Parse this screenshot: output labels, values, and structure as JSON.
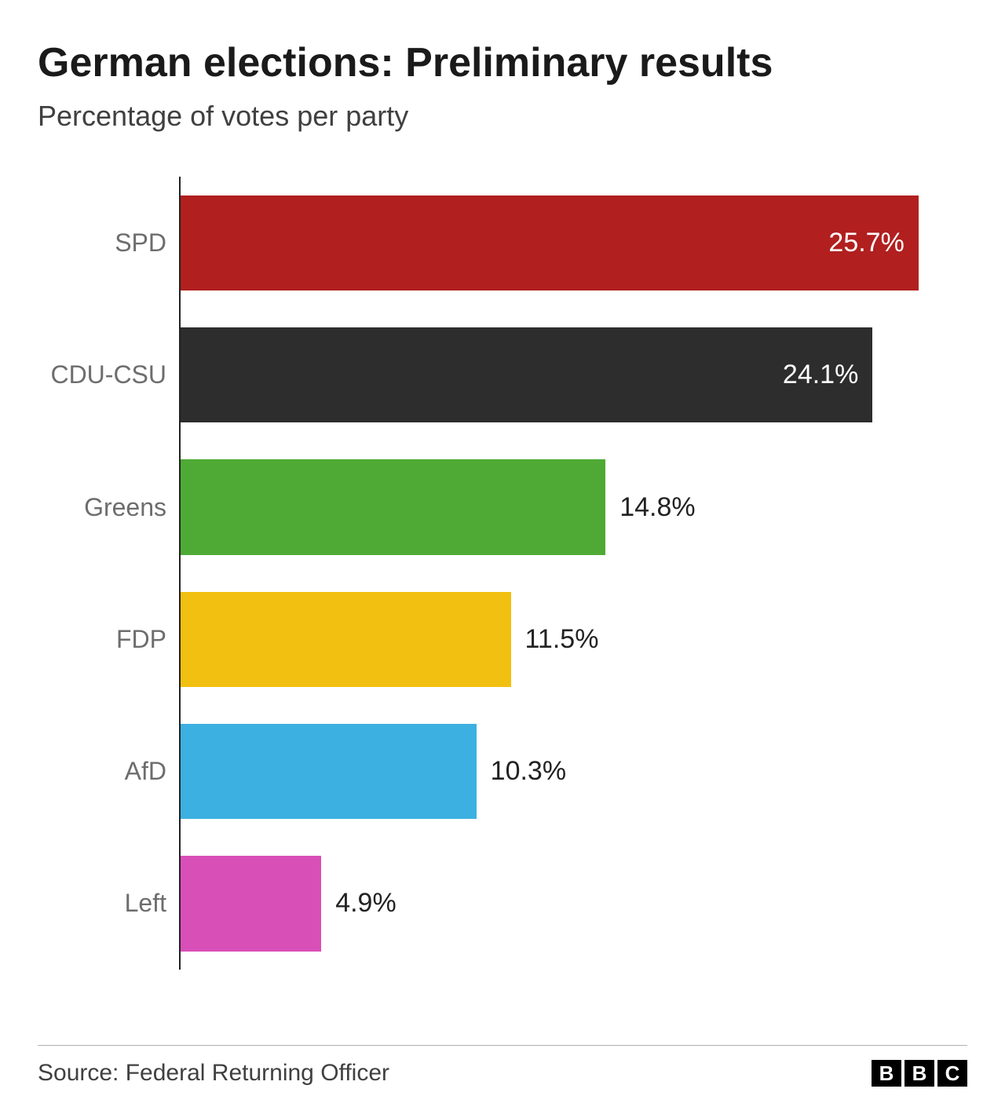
{
  "chart": {
    "type": "bar-horizontal",
    "title": "German elections: Preliminary results",
    "subtitle": "Percentage of votes per party",
    "title_fontsize": 52,
    "subtitle_fontsize": 36,
    "title_color": "#1a1a1a",
    "subtitle_color": "#404040",
    "background_color": "#ffffff",
    "axis_color": "#222222",
    "label_color": "#6d6d6d",
    "label_fontsize": 32,
    "value_fontsize": 34,
    "value_inside_color": "#ffffff",
    "value_outside_color": "#222222",
    "x_max": 27.4,
    "bar_height_pct": 72,
    "value_suffix": "%",
    "inside_label_threshold": 20,
    "parties": [
      {
        "name": "SPD",
        "value": 25.7,
        "color": "#b11f1f"
      },
      {
        "name": "CDU-CSU",
        "value": 24.1,
        "color": "#2d2d2d"
      },
      {
        "name": "Greens",
        "value": 14.8,
        "color": "#4eaa34"
      },
      {
        "name": "FDP",
        "value": 11.5,
        "color": "#f2c010"
      },
      {
        "name": "AfD",
        "value": 10.3,
        "color": "#3cb0e0"
      },
      {
        "name": "Left",
        "value": 4.9,
        "color": "#d94fb8"
      }
    ]
  },
  "footer": {
    "source": "Source: Federal Returning Officer",
    "logo_letters": [
      "B",
      "B",
      "C"
    ],
    "rule_color": "#b0b0b0"
  }
}
